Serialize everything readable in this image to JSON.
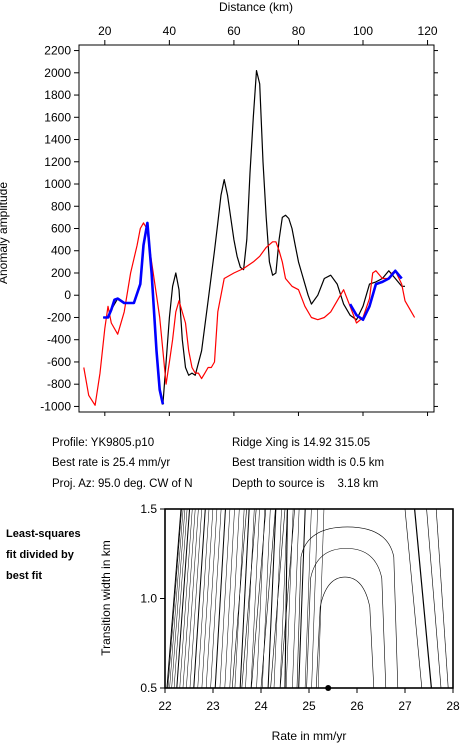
{
  "top_panel": {
    "xlabel": "Distance (km)",
    "ylabel": "Anomaly amplitude"
  },
  "info": {
    "profile": "Profile: YK9805.p10",
    "best_rate": "Best rate is 25.4 mm/yr",
    "proj_az": "Proj. Az: 95.0 deg. CW of N",
    "ridge_xing": "Ridge Xing is 14.92 315.05",
    "best_width": "Best transition width is 0.5 km",
    "depth": "Depth to source is    3.18 km"
  },
  "side_caption": [
    "Least-squares",
    "fit divided by",
    "best fit"
  ],
  "bottom_panel": {
    "xlabel": "Rate in mm/yr",
    "ylabel": "Transition width in km"
  },
  "chart_data": [
    {
      "type": "line",
      "xlabel": "Distance (km)",
      "ylabel": "Anomaly amplitude",
      "xlim": [
        12,
        122
      ],
      "ylim": [
        -1050,
        2250
      ],
      "x_axis_position": "top",
      "xticks": [
        20,
        40,
        60,
        80,
        100,
        120
      ],
      "yticks": [
        -1000,
        -800,
        -600,
        -400,
        -200,
        0,
        200,
        400,
        600,
        800,
        1000,
        1200,
        1400,
        1600,
        1800,
        2000,
        2200
      ],
      "series": [
        {
          "color": "#000000",
          "x": [
            19.5,
            21,
            22,
            24,
            26,
            29,
            31,
            32,
            33.2,
            34.5,
            36,
            37,
            38,
            39,
            40,
            41,
            42,
            43,
            44,
            45,
            46,
            47,
            48,
            50,
            52,
            54,
            55,
            56,
            57,
            58,
            59,
            60,
            61,
            62,
            63,
            64,
            65,
            66,
            67,
            68,
            69,
            70,
            71,
            72,
            73,
            74,
            75,
            76,
            77,
            78,
            79,
            80,
            81,
            82,
            83,
            84,
            86,
            88,
            90,
            92,
            94,
            96,
            98,
            100,
            102,
            104,
            106,
            108,
            110,
            112,
            113
          ],
          "y": [
            -200,
            -200,
            -130,
            -30,
            -70,
            -70,
            100,
            450,
            650,
            200,
            -500,
            -850,
            -980,
            -600,
            -200,
            80,
            200,
            50,
            -400,
            -650,
            -720,
            -700,
            -720,
            -500,
            -50,
            400,
            650,
            900,
            1040,
            900,
            700,
            500,
            350,
            250,
            230,
            500,
            1100,
            1600,
            2020,
            1900,
            1200,
            700,
            300,
            180,
            200,
            500,
            700,
            720,
            690,
            600,
            450,
            300,
            200,
            100,
            0,
            -80,
            0,
            150,
            180,
            100,
            -80,
            -180,
            -220,
            -100,
            100,
            120,
            150,
            220,
            150,
            80,
            80
          ]
        },
        {
          "color": "#ff0000",
          "x": [
            13.5,
            15,
            17,
            18.5,
            20,
            21,
            22,
            24,
            26,
            28,
            30,
            31,
            32,
            33,
            34.5,
            36,
            37,
            38,
            38.5,
            39,
            40,
            41,
            42,
            43,
            45,
            46,
            47,
            48,
            49,
            50,
            51,
            52,
            53,
            54,
            55,
            57,
            60,
            63,
            66,
            68,
            70,
            72,
            73,
            74,
            75,
            76,
            78,
            80,
            82,
            84,
            86,
            88,
            90,
            92,
            94,
            96,
            98,
            100,
            102,
            103,
            104,
            106,
            108,
            109,
            110,
            112,
            113,
            115,
            116
          ],
          "y": [
            -650,
            -900,
            -990,
            -700,
            -300,
            -100,
            -250,
            -350,
            -150,
            200,
            450,
            600,
            650,
            600,
            300,
            0,
            -200,
            -500,
            -650,
            -800,
            -600,
            -400,
            -150,
            -50,
            -250,
            -500,
            -650,
            -700,
            -700,
            -750,
            -700,
            -650,
            -650,
            -600,
            -150,
            150,
            200,
            240,
            300,
            350,
            430,
            480,
            480,
            400,
            300,
            150,
            80,
            50,
            -100,
            -200,
            -220,
            -200,
            -150,
            -50,
            50,
            -100,
            -250,
            -200,
            -30,
            200,
            220,
            150,
            150,
            200,
            220,
            100,
            -50,
            -150,
            -200
          ]
        },
        {
          "color": "#0000ff",
          "x": [
            19.5,
            21,
            22,
            23,
            24,
            26,
            29,
            31,
            32,
            33.2,
            34.5,
            36,
            37,
            38
          ],
          "y": [
            -200,
            -200,
            -130,
            -40,
            -30,
            -70,
            -70,
            100,
            450,
            650,
            200,
            -500,
            -850,
            -980
          ]
        },
        {
          "color": "#0000ff",
          "x": [
            96,
            98,
            100,
            102,
            104,
            106,
            108,
            110,
            112
          ],
          "y": [
            -80,
            -180,
            -220,
            -100,
            100,
            120,
            150,
            220,
            150
          ]
        }
      ]
    },
    {
      "type": "contour",
      "xlabel": "Rate in mm/yr",
      "ylabel": "Transition width in km",
      "xlim": [
        22,
        28
      ],
      "ylim": [
        0.5,
        1.5
      ],
      "xticks": [
        22,
        23,
        24,
        25,
        26,
        27,
        28
      ],
      "yticks": [
        0.5,
        1.0,
        1.5
      ],
      "best_fit": {
        "x": 25.4,
        "y": 0.5
      }
    }
  ]
}
